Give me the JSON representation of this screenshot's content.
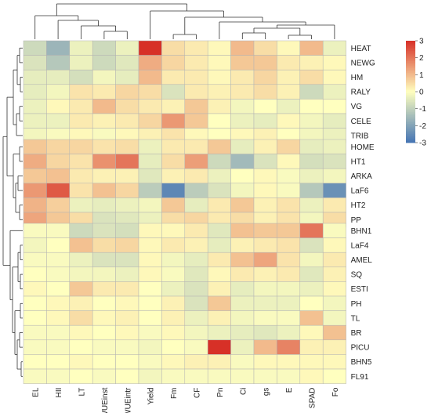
{
  "chart_data": {
    "type": "heatmap",
    "title": "",
    "rows": [
      "HEAT",
      "NEWG",
      "HM",
      "RALY",
      "VG",
      "CELE",
      "TRIB",
      "HOME",
      "HT1",
      "ARKA",
      "LaF6",
      "HT2",
      "PP",
      "BHN1",
      "LaF4",
      "AMEL",
      "SQ",
      "ESTI",
      "PH",
      "TL",
      "BR",
      "PICU",
      "BHN5",
      "FL91"
    ],
    "columns": [
      "EL",
      "HII",
      "LT",
      "WUEinst",
      "WUEintr",
      "Yield",
      "Fm",
      "CF",
      "Pn",
      "Ci",
      "gs",
      "E",
      "SPAD",
      "Fo"
    ],
    "values": [
      [
        -0.8,
        -1.6,
        -0.3,
        -0.8,
        -0.3,
        3.0,
        0.5,
        0.3,
        0.1,
        1.0,
        0.5,
        0.1,
        1.0,
        -0.3
      ],
      [
        -0.6,
        -1.2,
        -0.3,
        -0.8,
        -0.5,
        1.2,
        0.6,
        0.3,
        0.1,
        0.8,
        0.8,
        0.3,
        0.2,
        0.1
      ],
      [
        -0.4,
        -0.4,
        -0.7,
        -0.2,
        -0.4,
        1.0,
        0.3,
        0.3,
        0.1,
        0.3,
        0.6,
        0.2,
        0.5,
        0.1
      ],
      [
        -0.4,
        -0.2,
        0.4,
        0.3,
        0.6,
        0.5,
        -0.6,
        0.3,
        0.2,
        0.3,
        0.5,
        0.2,
        -0.8,
        -0.3
      ],
      [
        -0.3,
        0.1,
        0.3,
        1.0,
        0.5,
        0.3,
        0.2,
        0.8,
        0.2,
        -0.2,
        0.0,
        -0.3,
        0.0,
        0.0
      ],
      [
        -0.3,
        -0.3,
        0.3,
        0.2,
        0.3,
        0.6,
        1.5,
        0.8,
        0.0,
        -0.3,
        -0.4,
        0.1,
        -0.2,
        -0.4
      ],
      [
        -0.2,
        -0.1,
        0.1,
        -0.1,
        0.1,
        0.2,
        0.4,
        0.1,
        0.0,
        0.1,
        0.2,
        0.0,
        -0.2,
        -0.3
      ],
      [
        0.8,
        0.6,
        0.6,
        0.4,
        0.5,
        -0.3,
        0.3,
        0.3,
        0.8,
        -0.4,
        0.2,
        0.6,
        -0.4,
        -0.3
      ],
      [
        1.2,
        0.6,
        0.4,
        1.6,
        2.0,
        -0.4,
        0.5,
        1.4,
        -0.8,
        -1.5,
        -0.6,
        0.1,
        -0.7,
        -0.6
      ],
      [
        0.8,
        0.9,
        0.3,
        0.2,
        0.2,
        -0.5,
        0.2,
        0.3,
        -0.3,
        0.0,
        0.1,
        -0.1,
        -0.3,
        -0.2
      ],
      [
        1.5,
        2.4,
        0.4,
        0.9,
        0.6,
        -1.1,
        -2.6,
        -1.1,
        -0.6,
        -0.2,
        0.1,
        -0.1,
        -1.2,
        -2.4
      ],
      [
        1.1,
        0.7,
        -0.3,
        -0.4,
        -0.3,
        -0.2,
        0.8,
        -0.4,
        0.3,
        0.8,
        0.2,
        0.4,
        -0.3,
        0.3
      ],
      [
        1.3,
        0.8,
        0.5,
        -0.6,
        -0.5,
        -0.3,
        0.5,
        0.6,
        0.3,
        0.5,
        0.2,
        0.4,
        -0.2,
        0.5
      ],
      [
        -0.1,
        -0.1,
        -0.8,
        -0.6,
        -0.7,
        0.1,
        0.1,
        0.3,
        -0.5,
        0.9,
        0.8,
        0.8,
        2.0,
        -0.1
      ],
      [
        -0.2,
        0.0,
        0.9,
        0.5,
        0.6,
        0.1,
        0.3,
        0.2,
        -0.4,
        0.2,
        0.3,
        0.4,
        -0.6,
        0.1
      ],
      [
        -0.1,
        -0.1,
        -0.3,
        -0.6,
        -0.6,
        0.1,
        -0.2,
        -0.4,
        0.3,
        0.9,
        1.3,
        0.4,
        -0.2,
        0.3
      ],
      [
        0.0,
        -0.1,
        -0.2,
        -0.2,
        -0.3,
        0.1,
        -0.1,
        -0.5,
        0.1,
        0.3,
        0.2,
        0.3,
        -0.5,
        0.2
      ],
      [
        0.1,
        0.0,
        0.8,
        0.3,
        0.3,
        0.0,
        -0.3,
        -0.6,
        0.2,
        -0.4,
        -0.2,
        -0.2,
        -0.3,
        0.1
      ],
      [
        0.0,
        0.1,
        0.2,
        0.0,
        0.1,
        0.0,
        0.2,
        -0.6,
        0.8,
        -0.3,
        -0.3,
        -0.3,
        0.0,
        -0.2
      ],
      [
        0.0,
        0.1,
        0.5,
        0.1,
        0.2,
        0.0,
        0.2,
        -0.3,
        0.2,
        -0.2,
        -0.1,
        -0.1,
        0.9,
        -0.2
      ],
      [
        -0.1,
        -0.1,
        0.1,
        0.0,
        0.1,
        -0.1,
        0.1,
        -0.2,
        -0.3,
        -0.4,
        -0.5,
        -0.3,
        0.1,
        0.9
      ],
      [
        -0.1,
        -0.1,
        0.0,
        -0.1,
        -0.1,
        -0.2,
        0.0,
        -0.1,
        3.0,
        -0.3,
        1.0,
        1.8,
        0.2,
        0.2
      ],
      [
        0.0,
        0.0,
        0.1,
        0.0,
        0.0,
        -0.1,
        0.1,
        0.2,
        0.2,
        -0.1,
        0.1,
        0.1,
        0.1,
        0.1
      ],
      [
        -0.1,
        -0.1,
        0.0,
        -0.1,
        0.0,
        -0.2,
        -0.1,
        -0.1,
        -0.1,
        -0.1,
        -0.1,
        -0.1,
        0.1,
        0.0
      ]
    ],
    "row_groups": [
      7,
      6,
      11
    ],
    "colorbar": {
      "ticks": [
        3,
        2,
        1,
        0,
        -1,
        -2,
        -3
      ],
      "range": [
        -3,
        3
      ],
      "colors": [
        "#4575b4",
        "#ffffbf",
        "#d73027"
      ]
    },
    "row_dendrogram": "left",
    "column_dendrogram": "top",
    "legend_position": "right"
  }
}
